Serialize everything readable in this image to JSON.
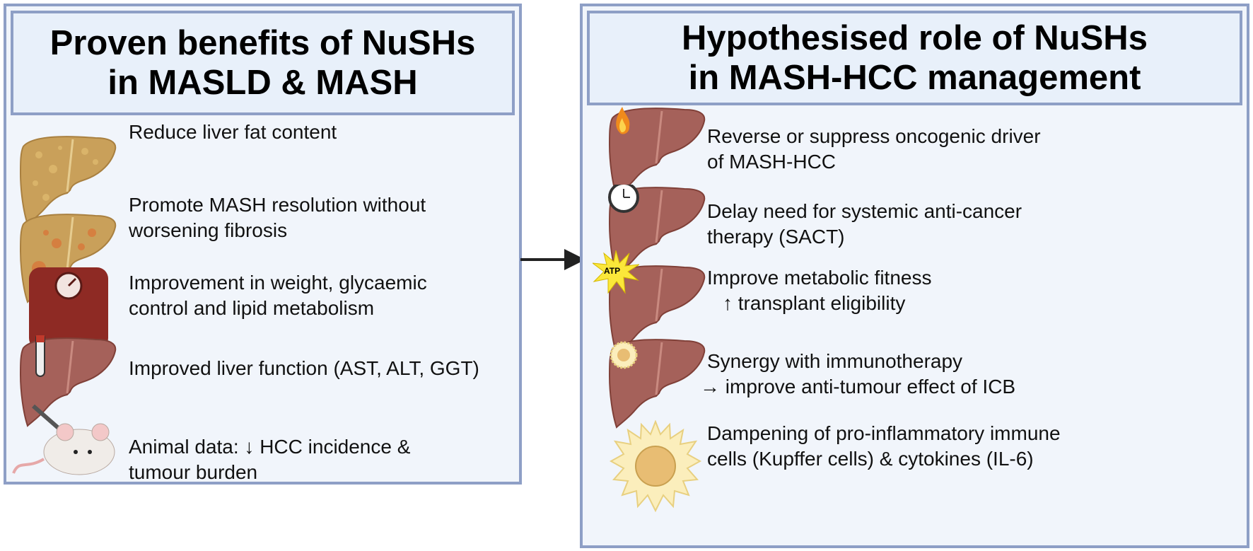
{
  "left_panel": {
    "title_line1": "Proven benefits of NuSHs",
    "title_line2": "in MASLD & MASH",
    "items": [
      {
        "icon": "fatty-liver-icon",
        "lines": [
          "Reduce liver fat content"
        ]
      },
      {
        "icon": "inflamed-liver-icon",
        "lines": [
          "Promote MASH resolution without",
          "worsening fibrosis"
        ]
      },
      {
        "icon": "weighing-scale-icon",
        "lines": [
          "Improvement in weight, glycaemic",
          "control and lipid metabolism"
        ]
      },
      {
        "icon": "liver-blood-test-icon",
        "lines": [
          "Improved liver function (AST, ALT, GGT)"
        ]
      },
      {
        "icon": "mouse-injection-icon",
        "lines": [
          "Animal data:",
          "HCC incidence &",
          "tumour burden"
        ]
      }
    ]
  },
  "right_panel": {
    "title_line1": "Hypothesised role of NuSHs",
    "title_line2": "in MASH-HCC management",
    "items": [
      {
        "icon": "liver-fire-icon",
        "lines": [
          "Reverse or suppress oncogenic driver",
          "of MASH-HCC"
        ]
      },
      {
        "icon": "liver-clock-icon",
        "lines": [
          "Delay need for systemic anti-cancer",
          "therapy (SACT)"
        ]
      },
      {
        "icon": "liver-atp-icon",
        "badge": "ATP",
        "lines": [
          "Improve metabolic fitness",
          "transplant eligibility"
        ]
      },
      {
        "icon": "liver-immune-cell-icon",
        "lines": [
          "Synergy with immunotherapy",
          "improve anti-tumour effect of ICB"
        ]
      },
      {
        "icon": "kupffer-cell-icon",
        "lines": [
          "Dampening of pro-inflammatory immune",
          "cells (Kupffer cells) & cytokines (IL-6)"
        ]
      }
    ]
  },
  "colors": {
    "panel_border": "#8e9fc6",
    "panel_bg": "#f1f5fb",
    "header_bg": "#e8f0fa",
    "liver": "#a5615a",
    "fatty_liver": "#c9a05a"
  }
}
